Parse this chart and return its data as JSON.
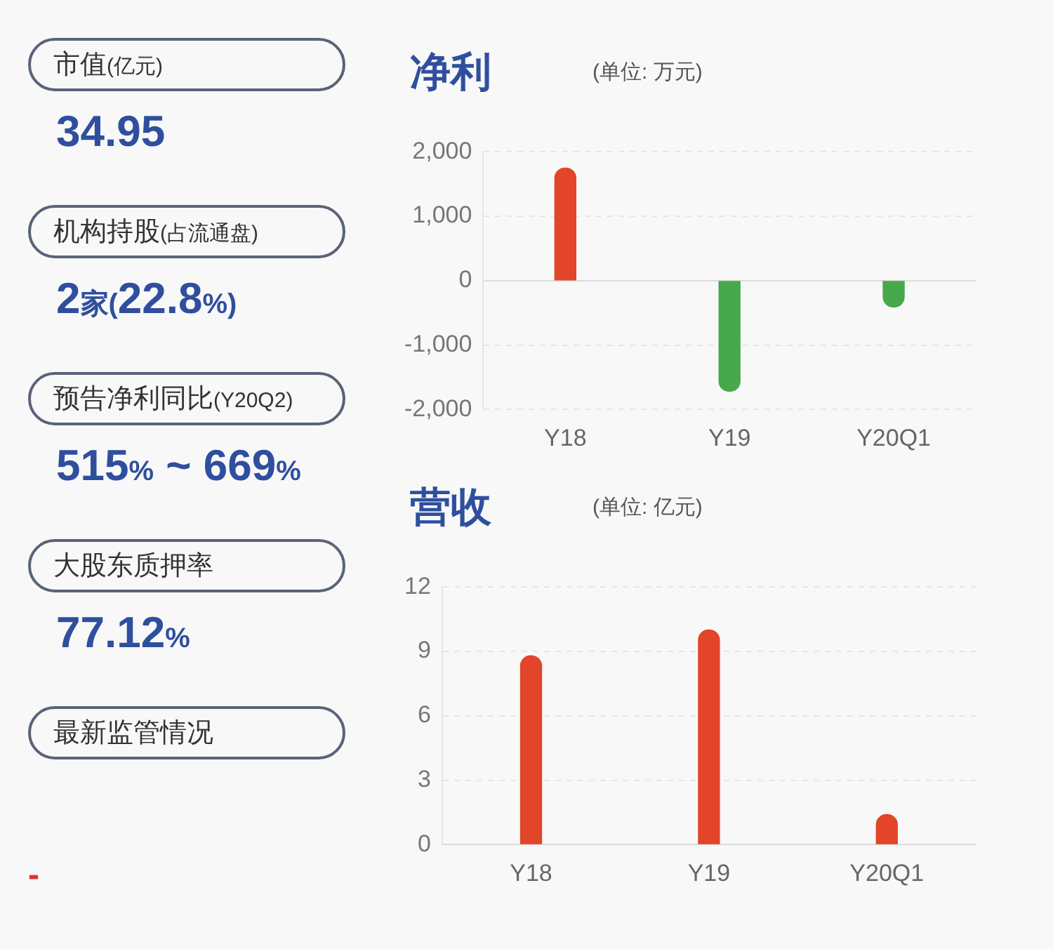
{
  "chart_data": [
    {
      "type": "other",
      "annotations": [
        "市值(亿元)",
        "34.95",
        "机构持股(占流通盘)",
        "2家(22.8%)",
        "预告净利同比(Y20Q2)",
        "515% ~ 669%",
        "大股东质押率",
        "77.12%",
        "最新监管情况",
        "-"
      ]
    },
    {
      "type": "bar",
      "title": "净利",
      "subtitle": "(单位: 万元)",
      "categories": [
        "Y18",
        "Y19",
        "Y20Q1"
      ],
      "values": [
        1750,
        -1720,
        -410
      ],
      "colors": [
        "#e2452a",
        "#46a84a",
        "#46a84a"
      ],
      "ylim": [
        -2000,
        2000
      ],
      "yticks": [
        {
          "value": 2000,
          "label": "2,000"
        },
        {
          "value": 1000,
          "label": "1,000"
        },
        0,
        {
          "value": -1000,
          "label": "-1,000"
        },
        {
          "value": -2000,
          "label": "-2,000"
        }
      ],
      "grid": "y"
    },
    {
      "type": "bar",
      "title": "营收",
      "subtitle": "(单位: 亿元)",
      "categories": [
        "Y18",
        "Y19",
        "Y20Q1"
      ],
      "values": [
        8.8,
        10,
        1.4
      ],
      "colors": [
        "#e2452a",
        "#e2452a",
        "#e2452a"
      ],
      "ylim": [
        0,
        12
      ],
      "yticks": [
        0,
        3,
        6,
        9,
        12
      ],
      "grid": "y"
    }
  ]
}
